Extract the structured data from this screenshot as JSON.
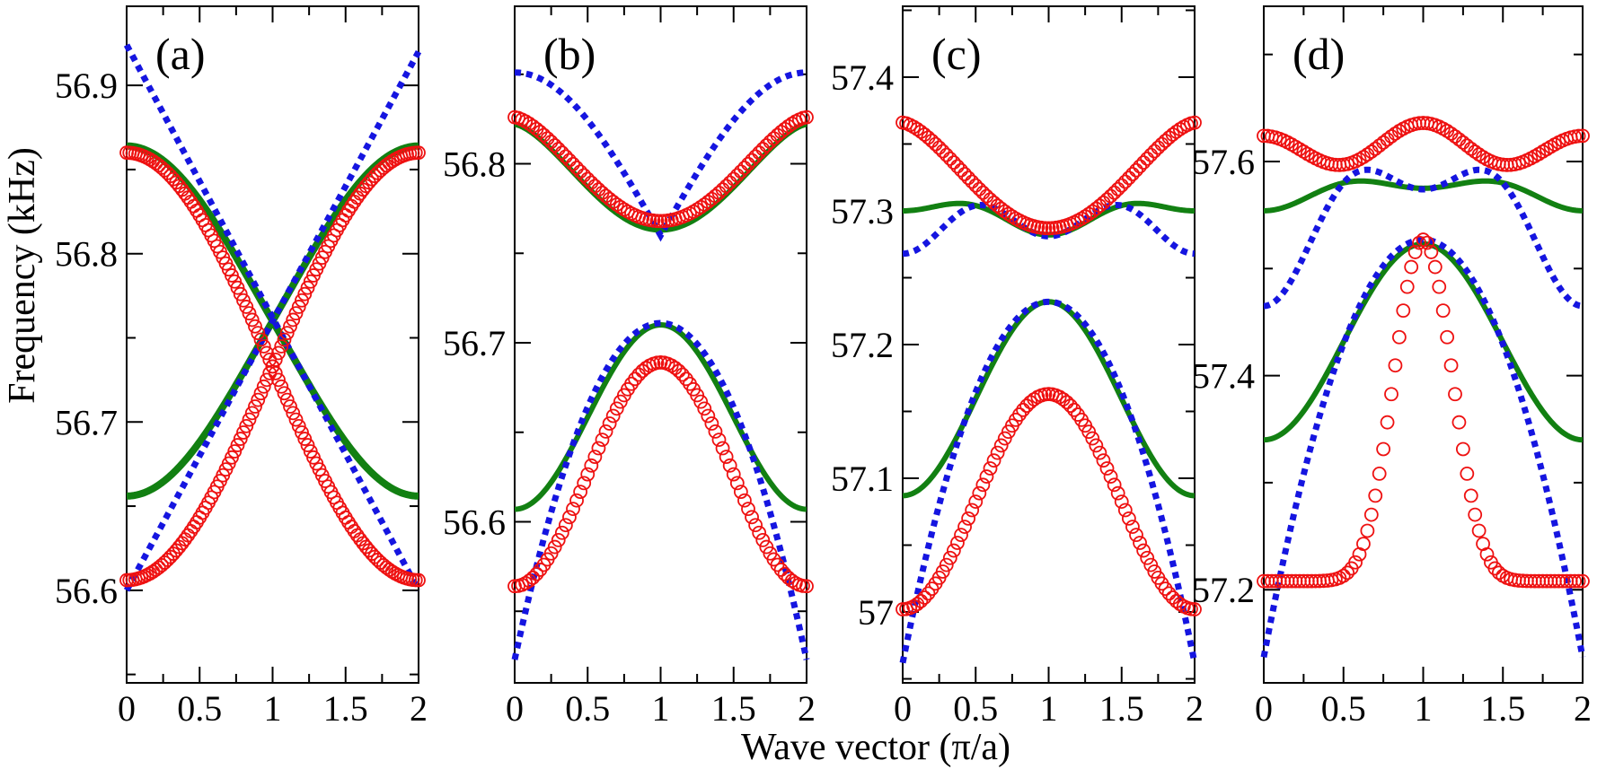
{
  "chart_data": {
    "type": "line",
    "xlabel": "Wave vector (π/a)",
    "ylabel": "Frequency (kHz)",
    "x_ticks": [
      "0",
      "0.5",
      "1",
      "1.5",
      "2"
    ],
    "xlim": [
      0,
      2
    ],
    "series_style": [
      {
        "name": "green-solid",
        "color": "#128012",
        "style": "solid"
      },
      {
        "name": "blue-dotted",
        "color": "#1515e0",
        "style": "dotted"
      },
      {
        "name": "red-circles",
        "color": "#ee1111",
        "style": "circles"
      }
    ],
    "panels": [
      {
        "label": "(a)",
        "ylim": [
          56.545,
          56.947
        ],
        "y_ticks": [
          56.6,
          56.7,
          56.8,
          56.9
        ],
        "y_tick_labels": [
          "56.6",
          "56.7",
          "56.8",
          "56.9"
        ],
        "curves": [
          {
            "series": "green-solid",
            "kind": "cross_branch",
            "params": {
              "y0": 56.656,
              "y1": 56.864,
              "width": 8
            }
          },
          {
            "series": "green-solid",
            "kind": "cross_branch",
            "params": {
              "y0": 56.864,
              "y1": 56.656,
              "width": 8
            }
          },
          {
            "series": "blue-dotted",
            "kind": "linear",
            "params": {
              "y0": 56.924,
              "y1": 56.6
            }
          },
          {
            "series": "blue-dotted",
            "kind": "linear",
            "params": {
              "y0": 56.6,
              "y1": 56.92
            }
          },
          {
            "series": "red-circles",
            "kind": "cos_branch",
            "params": {
              "y0": 56.606,
              "y1": 56.86,
              "step": 0.02
            }
          },
          {
            "series": "red-circles",
            "kind": "cos_branch",
            "params": {
              "y0": 56.86,
              "y1": 56.606,
              "step": 0.02
            }
          }
        ]
      },
      {
        "label": "(b)",
        "ylim": [
          56.51,
          56.888
        ],
        "y_ticks": [
          56.6,
          56.7,
          56.8
        ],
        "y_tick_labels": [
          "56.6",
          "56.7",
          "56.8"
        ],
        "curves": [
          {
            "series": "green-solid",
            "kind": "dip",
            "params": {
              "edge": 56.822,
              "center": 56.763
            }
          },
          {
            "series": "green-solid",
            "kind": "peak",
            "params": {
              "edge": 56.607,
              "center": 56.71
            }
          },
          {
            "series": "blue-dotted",
            "kind": "vshape",
            "params": {
              "edge": 56.851,
              "center": 56.76
            }
          },
          {
            "series": "blue-dotted",
            "kind": "parabola",
            "params": {
              "edge": 56.523,
              "center": 56.711
            }
          },
          {
            "series": "red-circles",
            "kind": "dip",
            "params": {
              "edge": 56.826,
              "center": 56.768,
              "step": 0.025
            }
          },
          {
            "series": "red-circles",
            "kind": "peak",
            "params": {
              "edge": 56.564,
              "center": 56.689,
              "step": 0.025
            }
          }
        ]
      },
      {
        "label": "(c)",
        "ylim": [
          56.947,
          57.453
        ],
        "y_ticks": [
          57.0,
          57.1,
          57.2,
          57.3,
          57.4
        ],
        "y_tick_labels": [
          "57",
          "57.1",
          "57.2",
          "57.3",
          "57.4"
        ],
        "curves": [
          {
            "series": "green-solid",
            "kind": "wshape",
            "params": {
              "edge": 57.3,
              "center": 57.282,
              "bump": 57.304
            }
          },
          {
            "series": "green-solid",
            "kind": "peak",
            "params": {
              "edge": 57.087,
              "center": 57.232
            }
          },
          {
            "series": "blue-dotted",
            "kind": "wshape",
            "params": {
              "edge": 57.268,
              "center": 57.281,
              "bump": 57.304
            }
          },
          {
            "series": "blue-dotted",
            "kind": "parabola",
            "params": {
              "edge": 56.962,
              "center": 57.232
            }
          },
          {
            "series": "red-circles",
            "kind": "dip",
            "params": {
              "edge": 57.366,
              "center": 57.287,
              "step": 0.025
            }
          },
          {
            "series": "red-circles",
            "kind": "peak",
            "params": {
              "edge": 57.002,
              "center": 57.163,
              "step": 0.025
            }
          }
        ]
      },
      {
        "label": "(d)",
        "ylim": [
          57.113,
          57.745
        ],
        "y_ticks": [
          57.2,
          57.4,
          57.6
        ],
        "y_tick_labels": [
          "57.2",
          "57.4",
          "57.6"
        ],
        "curves": [
          {
            "series": "green-solid",
            "kind": "wshape",
            "params": {
              "edge": 57.554,
              "center": 57.575,
              "bump": 57.58
            }
          },
          {
            "series": "green-solid",
            "kind": "peak",
            "params": {
              "edge": 57.34,
              "center": 57.523
            }
          },
          {
            "series": "blue-dotted",
            "kind": "wshape",
            "params": {
              "edge": 57.465,
              "center": 57.574,
              "bump": 57.58
            }
          },
          {
            "series": "blue-dotted",
            "kind": "parabola",
            "params": {
              "edge": 57.137,
              "center": 57.527
            }
          },
          {
            "series": "red-circles",
            "kind": "wshape",
            "params": {
              "edge": 57.624,
              "center": 57.636,
              "bump": 57.597,
              "step": 0.025
            }
          },
          {
            "series": "red-circles",
            "kind": "narrowpeak",
            "params": {
              "edge": 57.208,
              "center": 57.527,
              "step": 0.025
            }
          }
        ]
      }
    ]
  }
}
